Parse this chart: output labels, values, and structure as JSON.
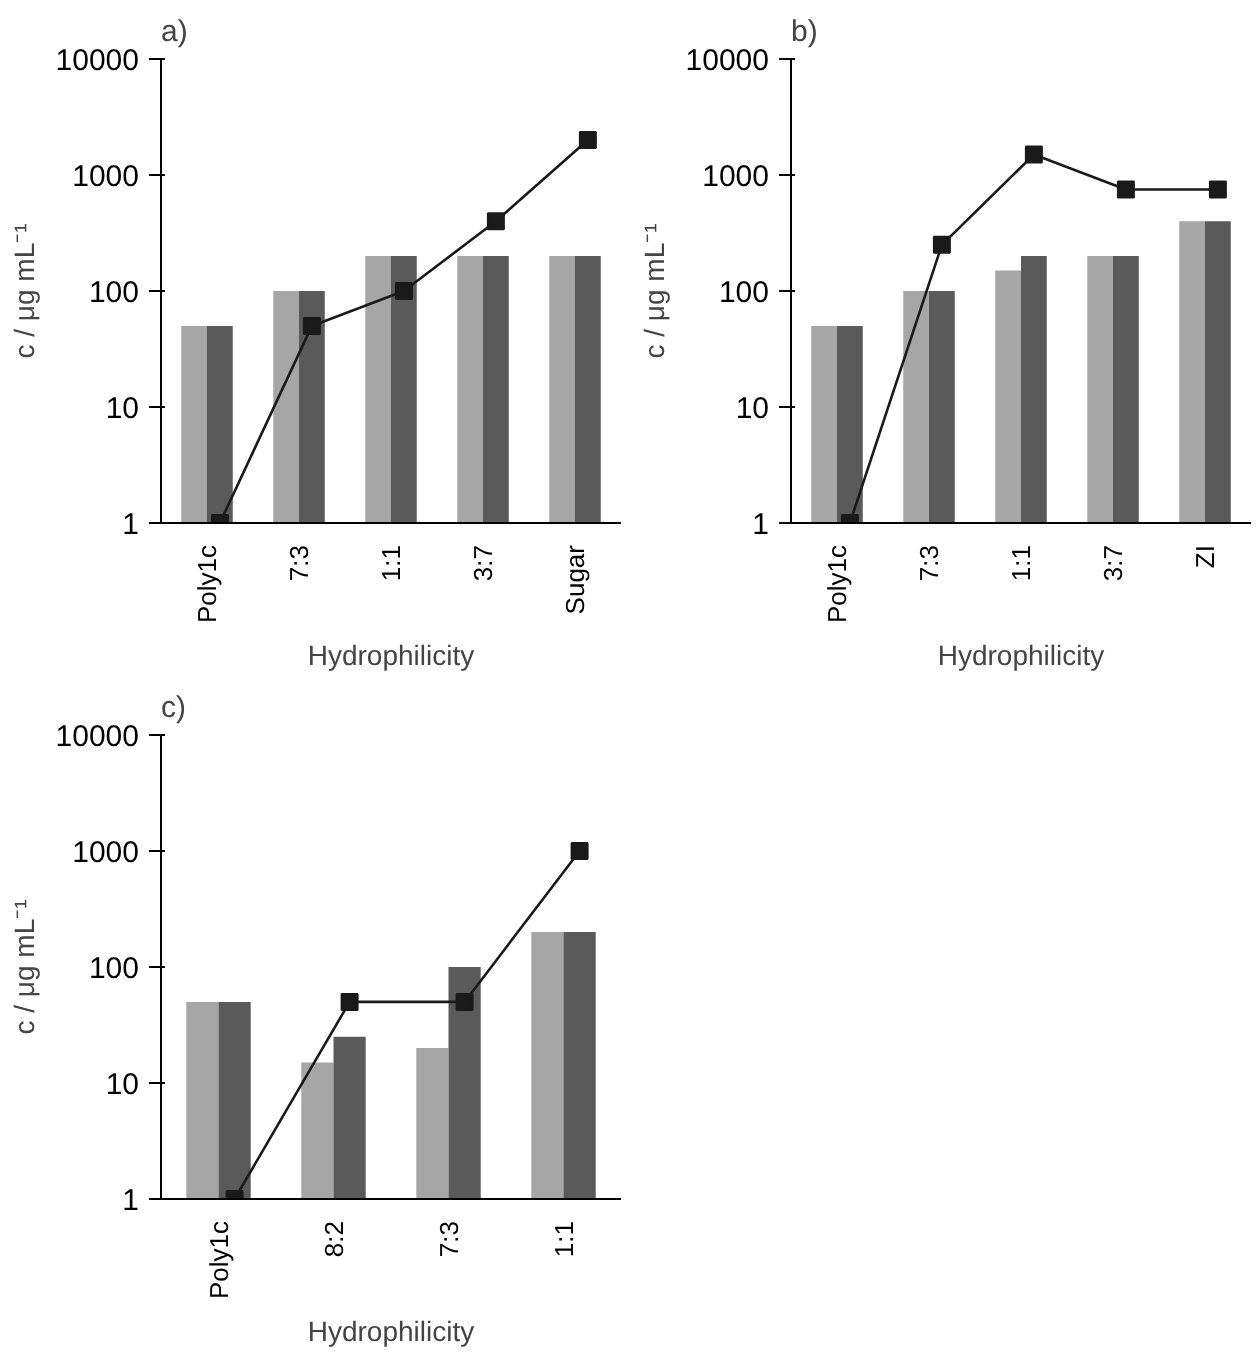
{
  "chart_data": [
    {
      "type": "bar",
      "title": "a)",
      "xlabel": "Hydrophilicity",
      "ylabel": "c / μg mL⁻¹",
      "categories": [
        "Poly1c",
        "7:3",
        "1:1",
        "3:7",
        "Sugar"
      ],
      "log": "y",
      "ylim": [
        1,
        10000
      ],
      "yticks": [
        1,
        10,
        100,
        1000,
        10000
      ],
      "series": [
        {
          "color": "#a6a6a6",
          "values": [
            50,
            100,
            200,
            200,
            200
          ]
        },
        {
          "color": "#5a5a5a",
          "values": [
            50,
            100,
            200,
            200,
            200
          ]
        },
        {
          "type": "line",
          "color": "#1a1a1a",
          "marker": "square",
          "values": [
            1,
            50,
            100,
            400,
            2000
          ]
        }
      ]
    },
    {
      "type": "bar",
      "title": "b)",
      "xlabel": "Hydrophilicity",
      "ylabel": "c / μg mL⁻¹",
      "categories": [
        "Poly1c",
        "7:3",
        "1:1",
        "3:7",
        "ZI"
      ],
      "log": "y",
      "ylim": [
        1,
        10000
      ],
      "yticks": [
        1,
        10,
        100,
        1000,
        10000
      ],
      "series": [
        {
          "color": "#a6a6a6",
          "values": [
            50,
            100,
            150,
            200,
            400
          ]
        },
        {
          "color": "#5a5a5a",
          "values": [
            50,
            100,
            200,
            200,
            400
          ]
        },
        {
          "type": "line",
          "color": "#1a1a1a",
          "marker": "square",
          "values": [
            1,
            250,
            1500,
            750,
            750
          ]
        }
      ]
    },
    {
      "type": "bar",
      "title": "c)",
      "xlabel": "Hydrophilicity",
      "ylabel": "c / μg mL⁻¹",
      "categories": [
        "Poly1c",
        "8:2",
        "7:3",
        "1:1"
      ],
      "log": "y",
      "ylim": [
        1,
        10000
      ],
      "yticks": [
        1,
        10,
        100,
        1000,
        10000
      ],
      "series": [
        {
          "color": "#a6a6a6",
          "values": [
            50,
            15,
            20,
            200
          ]
        },
        {
          "color": "#5a5a5a",
          "values": [
            50,
            25,
            100,
            200
          ]
        },
        {
          "type": "line",
          "color": "#1a1a1a",
          "marker": "square",
          "values": [
            1,
            50,
            50,
            1000
          ]
        }
      ]
    }
  ]
}
